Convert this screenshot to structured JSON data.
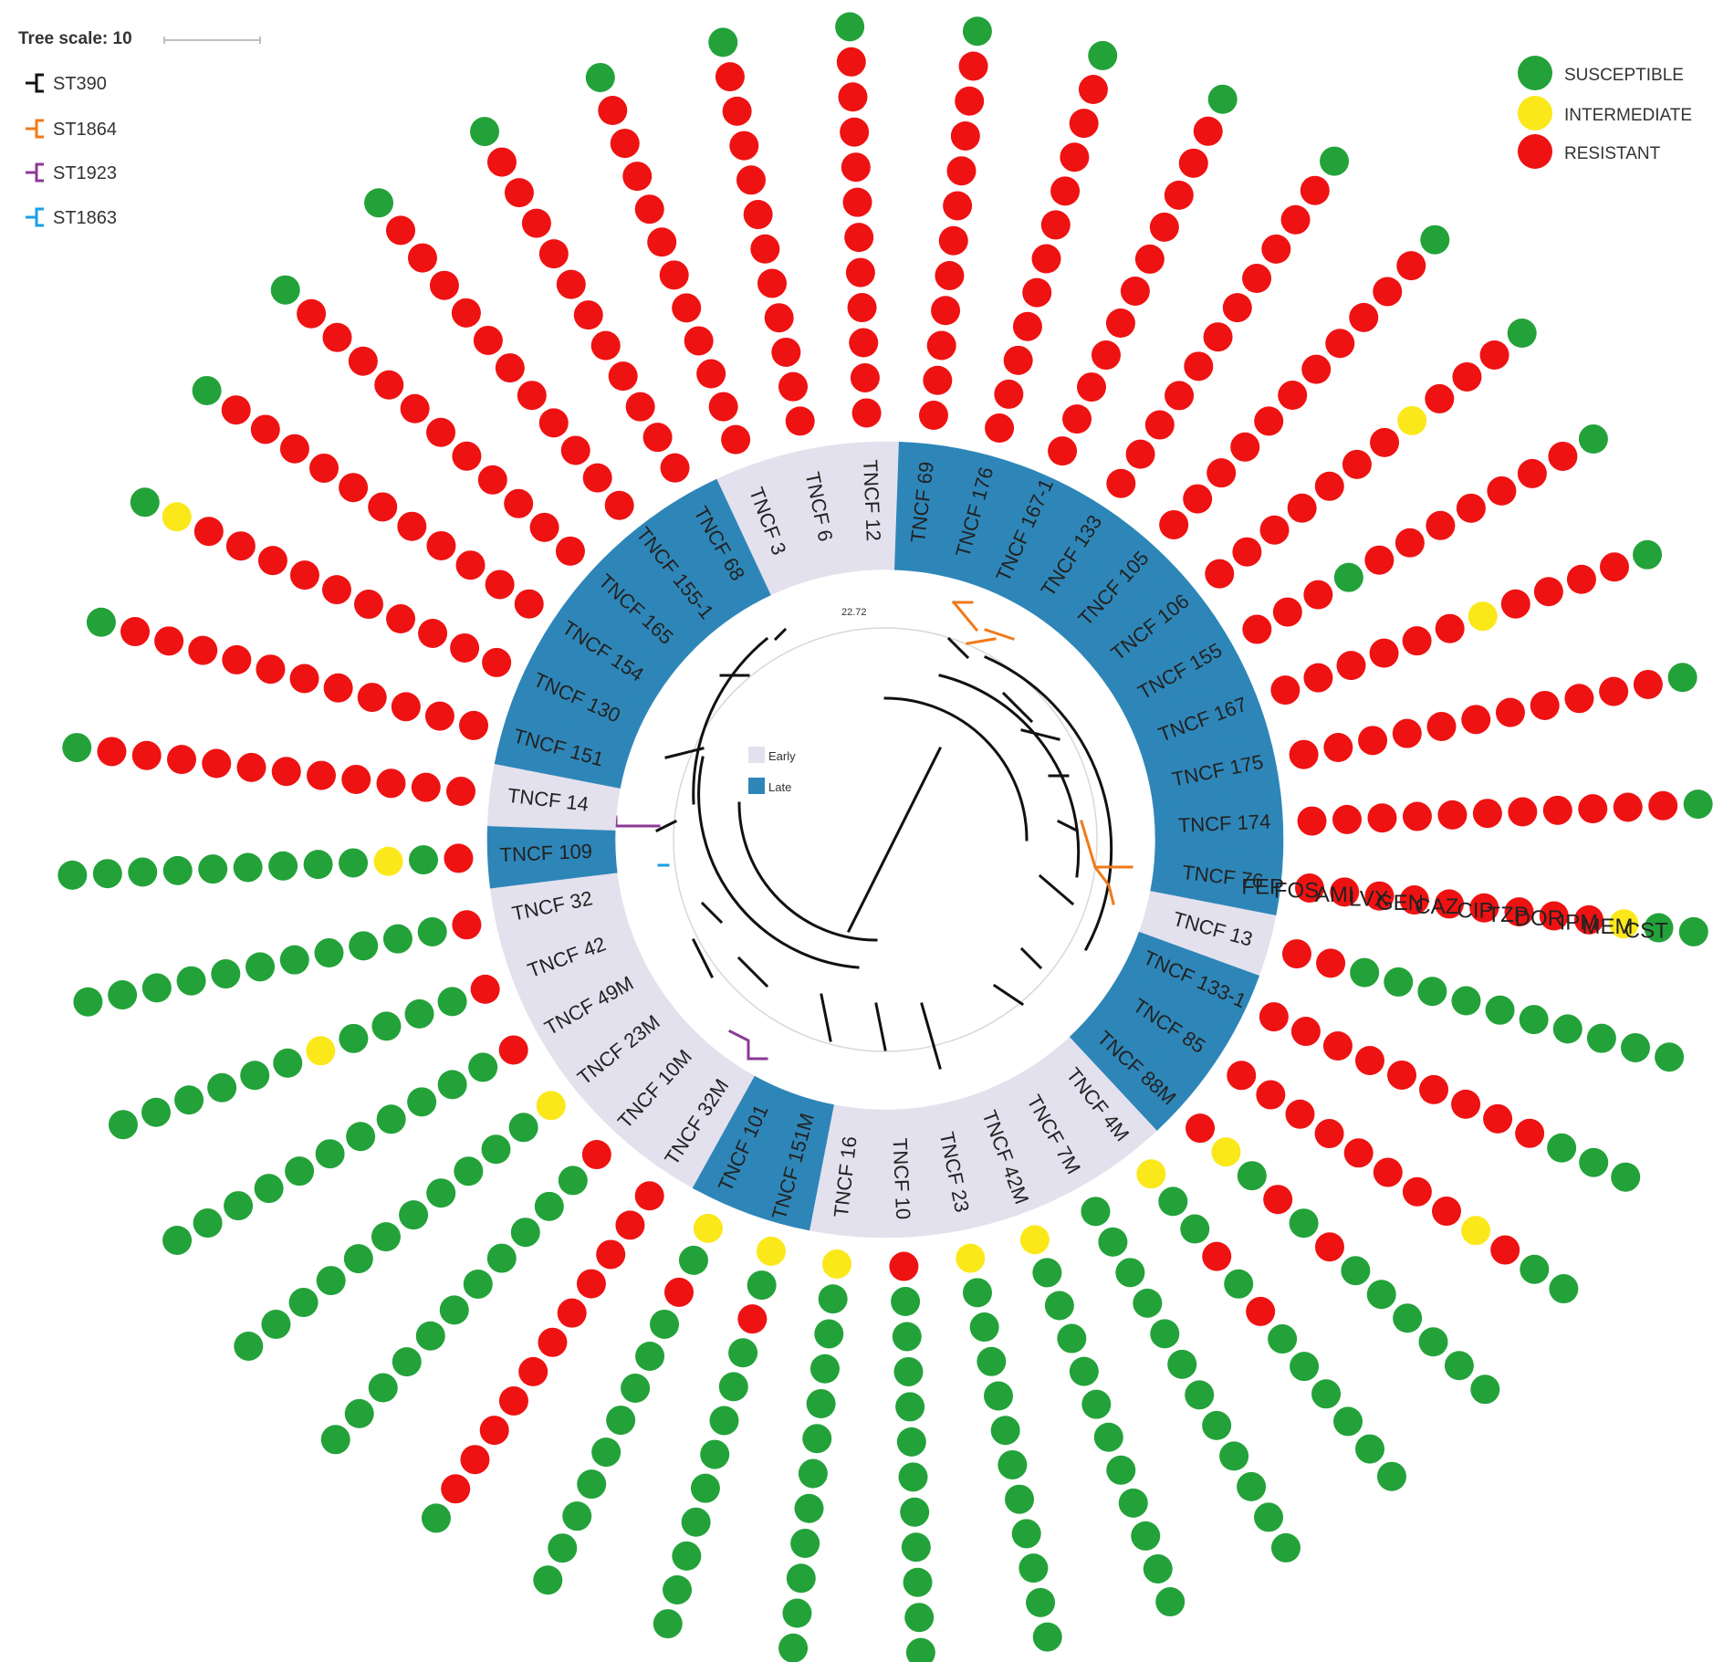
{
  "tree_scale": {
    "label": "Tree scale: 10"
  },
  "st_legend": [
    {
      "label": "ST390",
      "color": "#111111"
    },
    {
      "label": "ST1864",
      "color": "#f07a1a"
    },
    {
      "label": "ST1923",
      "color": "#8b3a96"
    },
    {
      "label": "ST1863",
      "color": "#1a9ee6"
    }
  ],
  "status_legend": [
    {
      "key": "S",
      "label": "SUSCEPTIBLE",
      "color": "#23a23a"
    },
    {
      "key": "I",
      "label": "INTERMEDIATE",
      "color": "#fbe81b"
    },
    {
      "key": "R",
      "label": "RESISTANT",
      "color": "#ef1212"
    }
  ],
  "period_legend": [
    {
      "key": "E",
      "label": "Early",
      "color": "#e4e1ee"
    },
    {
      "key": "L",
      "label": "Late",
      "color": "#2e86b8"
    }
  ],
  "scale_value": "22.72",
  "drugs": [
    "CST",
    "MEM",
    "IPM",
    "DOR",
    "TZP",
    "CIP",
    "CAZ",
    "GEN",
    "LVX",
    "AMI",
    "FOS",
    "FEP"
  ],
  "isolates": [
    {
      "label": "TNCF 76",
      "period": "L",
      "profile": "SSIRRRRRRRRR"
    },
    {
      "label": "TNCF 13",
      "period": "E",
      "profile": "SSSSSSSSSSRR"
    },
    {
      "label": "TNCF 133-1",
      "period": "L",
      "profile": "SSSRRRRRRRRR"
    },
    {
      "label": "TNCF 85",
      "period": "L",
      "profile": "SSRIRRRRRRRR"
    },
    {
      "label": "TNCF 88M",
      "period": "L",
      "profile": "SSSSSSRSRSIR"
    },
    {
      "label": "TNCF 4M",
      "period": "E",
      "profile": "SSSSSSRSRSSI"
    },
    {
      "label": "TNCF 7M",
      "period": "E",
      "profile": "SSSSSSSSSSSS"
    },
    {
      "label": "TNCF 42M",
      "period": "E",
      "profile": "SSSSSSSSSSSI"
    },
    {
      "label": "TNCF 23",
      "period": "E",
      "profile": "SSSSSSSSSSSI"
    },
    {
      "label": "TNCF 10",
      "period": "E",
      "profile": "SSSSSSSSSSSR"
    },
    {
      "label": "TNCF 16",
      "period": "E",
      "profile": "SSSSSSSSSSSI"
    },
    {
      "label": "TNCF 151M",
      "period": "L",
      "profile": "SSSSSSSSSRSI"
    },
    {
      "label": "TNCF 101",
      "period": "L",
      "profile": "SSSSSSSSSRSI"
    },
    {
      "label": "TNCF 32M",
      "period": "E",
      "profile": "SRRRRRRRRRRR"
    },
    {
      "label": "TNCF 10M",
      "period": "E",
      "profile": "SSSSSSSSSSSR"
    },
    {
      "label": "TNCF 23M",
      "period": "E",
      "profile": "SSSSSSSSSSSI"
    },
    {
      "label": "TNCF 49M",
      "period": "E",
      "profile": "SSSSSSSSSSSR"
    },
    {
      "label": "TNCF 42",
      "period": "E",
      "profile": "SSSSSSISSSSR"
    },
    {
      "label": "TNCF 32",
      "period": "E",
      "profile": "SSSSSSSSSSSR"
    },
    {
      "label": "TNCF 109",
      "period": "L",
      "profile": "SSSSSSSSSISR"
    },
    {
      "label": "TNCF 14",
      "period": "E",
      "profile": "SRRRRRRRRRRR"
    },
    {
      "label": "TNCF 151",
      "period": "L",
      "profile": "SRRRRRRRRRRR"
    },
    {
      "label": "TNCF 130",
      "period": "L",
      "profile": "SIRRRRRRRRRR"
    },
    {
      "label": "TNCF 154",
      "period": "L",
      "profile": "SRRRRRRRRRRR"
    },
    {
      "label": "TNCF 165",
      "period": "L",
      "profile": "SRRRRRRRRRRR"
    },
    {
      "label": "TNCF 155-1",
      "period": "L",
      "profile": "SRRRRRRRRRRR"
    },
    {
      "label": "TNCF 68",
      "period": "L",
      "profile": "SRRRRRRRRRRR"
    },
    {
      "label": "TNCF 3",
      "period": "E",
      "profile": "SRRRRRRRRRRR"
    },
    {
      "label": "TNCF 6",
      "period": "E",
      "profile": "SRRRRRRRRRRR"
    },
    {
      "label": "TNCF 12",
      "period": "E",
      "profile": "SRRRRRRRRRRR"
    },
    {
      "label": "TNCF 69",
      "period": "L",
      "profile": "SRRRRRRRRRRR"
    },
    {
      "label": "TNCF 176",
      "period": "L",
      "profile": "SRRRRRRRRRRR"
    },
    {
      "label": "TNCF 167-1",
      "period": "L",
      "profile": "SRRRRRRRRRRR"
    },
    {
      "label": "TNCF 133",
      "period": "L",
      "profile": "SRRRRRRRRRRR"
    },
    {
      "label": "TNCF 105",
      "period": "L",
      "profile": "SRRRRRRRRRRR"
    },
    {
      "label": "TNCF 106",
      "period": "L",
      "profile": "SRRRIRRRRRRR"
    },
    {
      "label": "TNCF 155",
      "period": "L",
      "profile": "SRRRRRRRSRRR"
    },
    {
      "label": "TNCF 167",
      "period": "L",
      "profile": "SRRRRIRRRRRR"
    },
    {
      "label": "TNCF 175",
      "period": "L",
      "profile": "SRRRRRRRRRRR"
    },
    {
      "label": "TNCF 174",
      "period": "L",
      "profile": "SRRRRRRRRRRR"
    }
  ]
}
